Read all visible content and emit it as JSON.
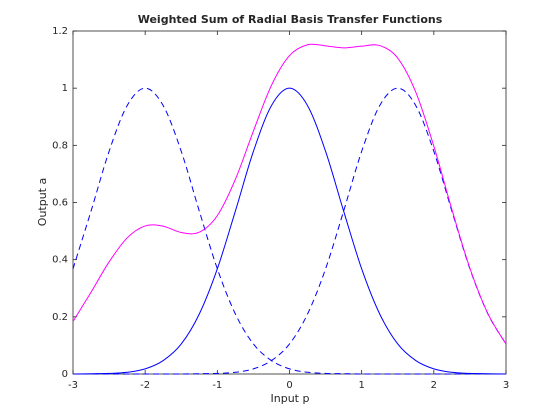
{
  "chart_data": {
    "type": "line",
    "title": "Weighted Sum of Radial Basis Transfer Functions",
    "x_label": "Input p",
    "y_label": "Output a",
    "x": [
      -3,
      -2.75,
      -2.5,
      -2.25,
      -2,
      -1.75,
      -1.5,
      -1.25,
      -1,
      -0.75,
      -0.5,
      -0.25,
      0,
      0.25,
      0.5,
      0.75,
      1,
      1.25,
      1.5,
      1.75,
      2,
      2.25,
      2.5,
      2.75,
      3
    ],
    "series": [
      {
        "color": "#0000ff",
        "style": "solid",
        "values": [
          0,
          0.001,
          0.002,
          0.006,
          0.018,
          0.047,
          0.105,
          0.21,
          0.368,
          0.57,
          0.779,
          0.939,
          1,
          0.939,
          0.779,
          0.57,
          0.368,
          0.21,
          0.105,
          0.047,
          0.018,
          0.006,
          0.002,
          0.001,
          0
        ]
      },
      {
        "color": "#0000ff",
        "style": "dashed",
        "values": [
          0.368,
          0.57,
          0.779,
          0.939,
          1,
          0.939,
          0.779,
          0.57,
          0.368,
          0.21,
          0.105,
          0.047,
          0.018,
          0.006,
          0.002,
          0.001,
          0,
          0,
          0,
          0,
          0,
          0,
          0,
          0,
          0
        ]
      },
      {
        "color": "#0000ff",
        "style": "dashed",
        "values": [
          0,
          0,
          0,
          0,
          0,
          0,
          0,
          0.001,
          0.002,
          0.006,
          0.018,
          0.047,
          0.105,
          0.21,
          0.368,
          0.57,
          0.779,
          0.939,
          1,
          0.939,
          0.779,
          0.57,
          0.368,
          0.21,
          0.105
        ]
      },
      {
        "color": "#ff00ff",
        "style": "solid",
        "values": [
          0.184,
          0.286,
          0.392,
          0.476,
          0.518,
          0.517,
          0.495,
          0.496,
          0.554,
          0.681,
          0.85,
          1.01,
          1.114,
          1.152,
          1.148,
          1.141,
          1.147,
          1.149,
          1.105,
          0.986,
          0.797,
          0.576,
          0.37,
          0.211,
          0.105
        ]
      }
    ],
    "xlim": [
      -3,
      3
    ],
    "xticks": [
      -3,
      -2,
      -1,
      0,
      1,
      2,
      3
    ],
    "ylim": [
      0,
      1.2
    ],
    "yticks": [
      0,
      0.2,
      0.4,
      0.6,
      0.8,
      1,
      1.2
    ]
  }
}
